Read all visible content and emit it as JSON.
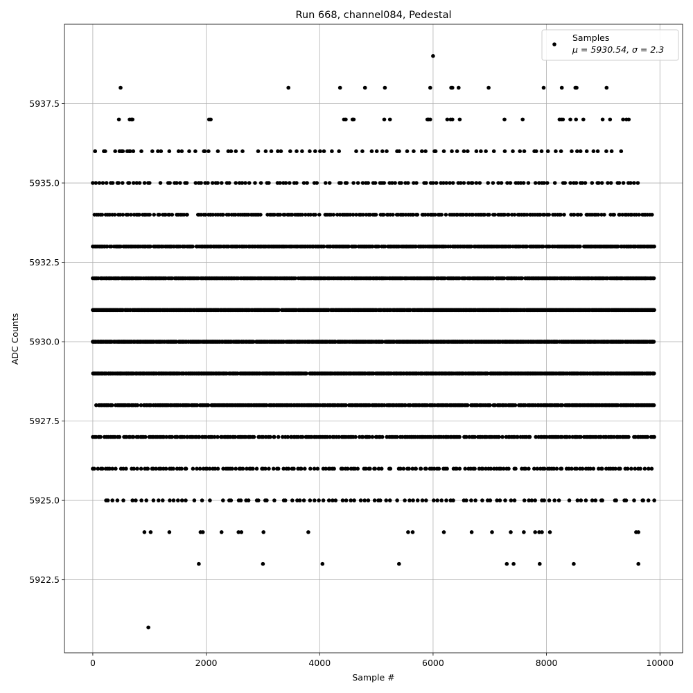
{
  "chart_data": {
    "type": "scatter",
    "title": "Run 668, channel084, Pedestal",
    "xlabel": "Sample #",
    "ylabel": "ADC Counts",
    "xlim": [
      -500,
      10400
    ],
    "ylim": [
      5920.2,
      5940.0
    ],
    "xticks": [
      0,
      2000,
      4000,
      6000,
      8000,
      10000
    ],
    "xtick_labels": [
      "0",
      "2000",
      "4000",
      "6000",
      "8000",
      "10000"
    ],
    "yticks": [
      5922.5,
      5925.0,
      5927.5,
      5930.0,
      5932.5,
      5935.0,
      5937.5
    ],
    "ytick_labels": [
      "5922.5",
      "5925.0",
      "5927.5",
      "5930.0",
      "5932.5",
      "5935.0",
      "5937.5"
    ],
    "grid": true,
    "legend": {
      "position": "top-right",
      "entries": [
        {
          "name": "Samples",
          "stats": "μ = 5930.54, σ = 2.3"
        }
      ]
    },
    "series": [
      {
        "name": "Samples",
        "color": "#000000",
        "note": "Integer ADC values; dense rows at levels 5926–5934, sparse at the extremes",
        "levels": [
          {
            "y": 5939,
            "points": [
              6000
            ]
          },
          {
            "y": 5938,
            "points": [
              490,
              3450,
              4360,
              4800,
              5150,
              5950,
              6320,
              6340,
              6450,
              6980,
              7950,
              8270,
              8510,
              8530,
              9060
            ]
          },
          {
            "y": 5937,
            "points": [
              460,
              650,
              680,
              700,
              2050,
              2080,
              4430,
              4460,
              4580,
              4600,
              5140,
              5240,
              5900,
              5920,
              5950,
              6250,
              6310,
              6340,
              6470,
              7260,
              7580,
              8230,
              8260,
              8290,
              8420,
              8520,
              8650,
              8990,
              9120,
              9350,
              9410,
              9450
            ]
          },
          {
            "y": 5936,
            "from": 40,
            "to": 9450,
            "step": 110,
            "extra": [
              40,
              470,
              500,
              530,
              640,
              660,
              2040
            ]
          },
          {
            "y": 5935,
            "from": 0,
            "to": 9700,
            "step": 60
          },
          {
            "y": 5934,
            "from": 30,
            "to": 9890,
            "step": 35
          },
          {
            "y": 5933,
            "from": 0,
            "to": 9900,
            "step": 20
          },
          {
            "y": 5932,
            "from": 0,
            "to": 9900,
            "step": 15
          },
          {
            "y": 5931,
            "from": 0,
            "to": 9900,
            "step": 12
          },
          {
            "y": 5930,
            "from": 0,
            "to": 9900,
            "step": 12
          },
          {
            "y": 5929,
            "from": 0,
            "to": 9900,
            "step": 15
          },
          {
            "y": 5928,
            "from": 60,
            "to": 9900,
            "step": 22
          },
          {
            "y": 5927,
            "from": 0,
            "to": 9900,
            "step": 30
          },
          {
            "y": 5926,
            "from": 0,
            "to": 9900,
            "step": 45
          },
          {
            "y": 5925,
            "from": 220,
            "to": 9900,
            "step": 80
          },
          {
            "y": 5924,
            "points": [
              910,
              1020,
              1350,
              1900,
              1940,
              2270,
              2570,
              2620,
              3010,
              3800,
              5560,
              5640,
              6190,
              6680,
              7040,
              7370,
              7600,
              7800,
              7870,
              7920,
              8060,
              9580,
              9620
            ]
          },
          {
            "y": 5923,
            "points": [
              1870,
              3000,
              4050,
              5400,
              7300,
              7420,
              7880,
              8480,
              9620
            ]
          },
          {
            "y": 5921,
            "points": [
              980
            ]
          }
        ]
      }
    ]
  }
}
